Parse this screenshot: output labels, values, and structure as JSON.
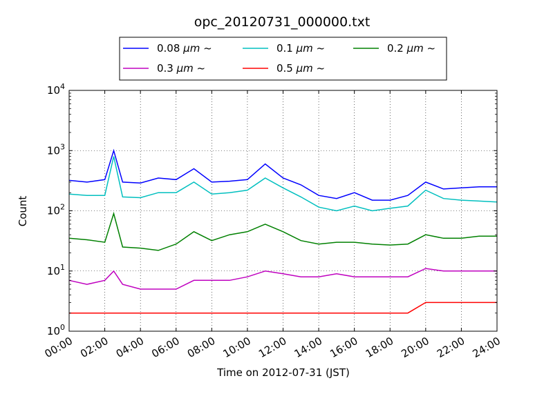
{
  "chart_data": {
    "type": "line",
    "title": "opc_20120731_000000.txt",
    "xlabel": "Time on 2012-07-31 (JST)",
    "ylabel": "Count",
    "y_scale": "log",
    "ylim": [
      1,
      10000
    ],
    "xlim": [
      "00:00",
      "24:00"
    ],
    "grid": true,
    "legend_position": "top-center",
    "x_ticks": [
      "00:00",
      "02:00",
      "04:00",
      "06:00",
      "08:00",
      "10:00",
      "12:00",
      "14:00",
      "16:00",
      "18:00",
      "20:00",
      "22:00",
      "24:00"
    ],
    "y_ticks": [
      {
        "base": "10",
        "exp": "0",
        "value": 1
      },
      {
        "base": "10",
        "exp": "1",
        "value": 10
      },
      {
        "base": "10",
        "exp": "2",
        "value": 100
      },
      {
        "base": "10",
        "exp": "3",
        "value": 1000
      },
      {
        "base": "10",
        "exp": "4",
        "value": 10000
      }
    ],
    "x_hours": [
      0,
      1,
      2,
      2.5,
      3,
      4,
      5,
      6,
      7,
      8,
      9,
      10,
      11,
      12,
      13,
      14,
      15,
      16,
      17,
      18,
      19,
      20,
      21,
      22,
      23,
      24
    ],
    "series": [
      {
        "name": "0.08 μm ~",
        "label_main": "0.08",
        "label_unit": "μm ~",
        "color": "#0000ff",
        "values": [
          320,
          300,
          330,
          1000,
          300,
          290,
          350,
          330,
          500,
          300,
          310,
          330,
          600,
          350,
          270,
          180,
          160,
          200,
          150,
          150,
          180,
          300,
          230,
          240,
          250,
          250
        ]
      },
      {
        "name": "0.1 μm ~",
        "label_main": "0.1",
        "label_unit": "μm ~",
        "color": "#00bfbf",
        "values": [
          190,
          180,
          180,
          800,
          170,
          165,
          200,
          200,
          300,
          190,
          200,
          220,
          350,
          240,
          170,
          115,
          100,
          120,
          100,
          110,
          120,
          220,
          160,
          150,
          145,
          140
        ]
      },
      {
        "name": "0.2 μm ~",
        "label_main": "0.2",
        "label_unit": "μm ~",
        "color": "#008000",
        "values": [
          35,
          33,
          30,
          90,
          25,
          24,
          22,
          28,
          45,
          32,
          40,
          45,
          60,
          45,
          32,
          28,
          30,
          30,
          28,
          27,
          28,
          40,
          35,
          35,
          38,
          38
        ]
      },
      {
        "name": "0.3 μm ~",
        "label_main": "0.3",
        "label_unit": "μm ~",
        "color": "#bf00bf",
        "values": [
          7,
          6,
          7,
          10,
          6,
          5,
          5,
          5,
          7,
          7,
          7,
          8,
          10,
          9,
          8,
          8,
          9,
          8,
          8,
          8,
          8,
          11,
          10,
          10,
          10,
          10
        ]
      },
      {
        "name": "0.5 μm ~",
        "label_main": "0.5",
        "label_unit": "μm ~",
        "color": "#ff0000",
        "values": [
          2,
          2,
          2,
          2,
          2,
          2,
          2,
          2,
          2,
          2,
          2,
          2,
          2,
          2,
          2,
          2,
          2,
          2,
          2,
          2,
          2,
          3,
          3,
          3,
          3,
          3
        ]
      }
    ]
  }
}
